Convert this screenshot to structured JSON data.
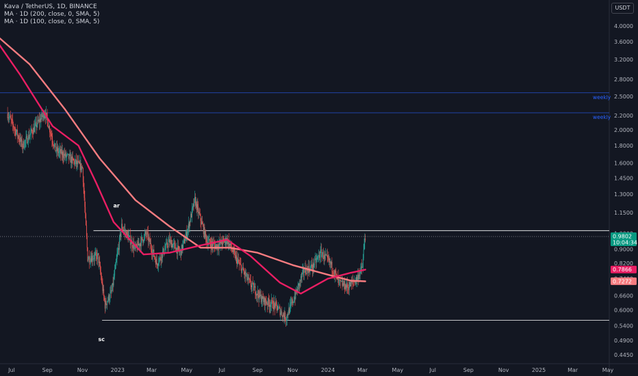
{
  "legend": {
    "symbol_line": "Kava / TetherUS, 1D, BINANCE",
    "ma1_line": "MA · 1D (200, close, 0, SMA, 5)",
    "ma2_line": "MA · 1D (100, close, 0, SMA, 5)"
  },
  "currency_button": "USDT",
  "colors": {
    "background": "#131722",
    "up": "#26a69a",
    "down": "#ef5350",
    "ma200": "#f77c80",
    "ma100": "#e91e63",
    "level_line": "#2962ff",
    "price_badge": "#089981",
    "ma100_badge": "#e91e63",
    "ma200_badge": "#f77c80"
  },
  "chart_data": {
    "type": "candlestick",
    "scale": "log",
    "y_ticks": [
      "4.0000",
      "3.6000",
      "3.2000",
      "2.8000",
      "2.5000",
      "2.2000",
      "2.0000",
      "1.8000",
      "1.6000",
      "1.4500",
      "1.3000",
      "1.1500",
      "1.0000",
      "0.9000",
      "0.8200",
      "0.7400",
      "0.6600",
      "0.6000",
      "0.5400",
      "0.4900",
      "0.4450"
    ],
    "x_ticks": [
      "Jul",
      "Sep",
      "Nov",
      "2023",
      "Mar",
      "May",
      "Jul",
      "Sep",
      "Nov",
      "2024",
      "Mar",
      "May",
      "Jul",
      "Sep",
      "Nov",
      "2025",
      "Mar",
      "May"
    ],
    "horizontal_levels": [
      {
        "price": 2.56,
        "label": "weekly",
        "color": "#2962ff"
      },
      {
        "price": 2.24,
        "label": "weekly",
        "color": "#2962ff"
      },
      {
        "price": 1.02,
        "label": "",
        "color": "#ffffff"
      },
      {
        "price": 0.56,
        "label": "",
        "color": "#ffffff"
      }
    ],
    "annotations": [
      {
        "text": "ar",
        "date": "2022-12-30",
        "price": 1.17
      },
      {
        "text": "sc",
        "date": "2022-12-04",
        "price": 0.515
      }
    ],
    "price_anchors": [
      {
        "date": "2022-06-20",
        "price": 2.3
      },
      {
        "date": "2022-07-20",
        "price": 1.8
      },
      {
        "date": "2022-08-28",
        "price": 2.25
      },
      {
        "date": "2022-09-15",
        "price": 1.75
      },
      {
        "date": "2022-10-10",
        "price": 1.65
      },
      {
        "date": "2022-11-01",
        "price": 1.55
      },
      {
        "date": "2022-11-10",
        "price": 0.85
      },
      {
        "date": "2022-11-28",
        "price": 0.86
      },
      {
        "date": "2022-12-10",
        "price": 0.62
      },
      {
        "date": "2022-12-22",
        "price": 0.68
      },
      {
        "date": "2023-01-08",
        "price": 1.05
      },
      {
        "date": "2023-02-01",
        "price": 0.9
      },
      {
        "date": "2023-02-20",
        "price": 1.0
      },
      {
        "date": "2023-03-10",
        "price": 0.82
      },
      {
        "date": "2023-04-01",
        "price": 0.95
      },
      {
        "date": "2023-04-20",
        "price": 0.88
      },
      {
        "date": "2023-05-01",
        "price": 1.0
      },
      {
        "date": "2023-05-15",
        "price": 1.25
      },
      {
        "date": "2023-06-05",
        "price": 0.95
      },
      {
        "date": "2023-06-20",
        "price": 0.92
      },
      {
        "date": "2023-07-10",
        "price": 0.96
      },
      {
        "date": "2023-07-30",
        "price": 0.82
      },
      {
        "date": "2023-08-18",
        "price": 0.72
      },
      {
        "date": "2023-09-10",
        "price": 0.64
      },
      {
        "date": "2023-10-01",
        "price": 0.62
      },
      {
        "date": "2023-10-20",
        "price": 0.57
      },
      {
        "date": "2023-11-05",
        "price": 0.66
      },
      {
        "date": "2023-11-20",
        "price": 0.78
      },
      {
        "date": "2023-12-05",
        "price": 0.8
      },
      {
        "date": "2023-12-20",
        "price": 0.88
      },
      {
        "date": "2024-01-05",
        "price": 0.82
      },
      {
        "date": "2024-01-20",
        "price": 0.72
      },
      {
        "date": "2024-02-05",
        "price": 0.7
      },
      {
        "date": "2024-02-20",
        "price": 0.74
      },
      {
        "date": "2024-03-01",
        "price": 0.8
      },
      {
        "date": "2024-03-05",
        "price": 0.98
      }
    ],
    "ma200": {
      "name": "MA 200",
      "points": [
        {
          "date": "2022-06-01",
          "price": 3.8
        },
        {
          "date": "2022-08-01",
          "price": 3.1
        },
        {
          "date": "2022-10-01",
          "price": 2.3
        },
        {
          "date": "2022-12-01",
          "price": 1.65
        },
        {
          "date": "2023-02-01",
          "price": 1.25
        },
        {
          "date": "2023-04-01",
          "price": 1.05
        },
        {
          "date": "2023-05-25",
          "price": 0.91
        },
        {
          "date": "2023-07-15",
          "price": 0.91
        },
        {
          "date": "2023-09-01",
          "price": 0.88
        },
        {
          "date": "2023-11-01",
          "price": 0.81
        },
        {
          "date": "2024-01-01",
          "price": 0.76
        },
        {
          "date": "2024-02-10",
          "price": 0.73
        },
        {
          "date": "2024-03-06",
          "price": 0.727
        }
      ]
    },
    "ma100": {
      "name": "MA 100",
      "points": [
        {
          "date": "2022-06-01",
          "price": 3.7
        },
        {
          "date": "2022-07-15",
          "price": 2.9
        },
        {
          "date": "2022-09-10",
          "price": 2.05
        },
        {
          "date": "2022-10-25",
          "price": 1.8
        },
        {
          "date": "2022-11-25",
          "price": 1.4
        },
        {
          "date": "2022-12-25",
          "price": 1.08
        },
        {
          "date": "2023-02-15",
          "price": 0.87
        },
        {
          "date": "2023-04-01",
          "price": 0.88
        },
        {
          "date": "2023-05-20",
          "price": 0.92
        },
        {
          "date": "2023-07-10",
          "price": 0.96
        },
        {
          "date": "2023-08-20",
          "price": 0.86
        },
        {
          "date": "2023-10-10",
          "price": 0.72
        },
        {
          "date": "2023-11-15",
          "price": 0.67
        },
        {
          "date": "2024-01-01",
          "price": 0.74
        },
        {
          "date": "2024-02-10",
          "price": 0.77
        },
        {
          "date": "2024-03-06",
          "price": 0.786
        }
      ]
    },
    "price_badges": [
      {
        "value": "0.9802",
        "sub": "10:04:34",
        "price": 0.9802,
        "color": "#089981"
      },
      {
        "value": "0.7866",
        "price": 0.7866,
        "color": "#e91e63"
      },
      {
        "value": "0.7272",
        "price": 0.7272,
        "color": "#f77c80"
      }
    ],
    "current_price": 0.9802,
    "current_time": "10:04:34"
  }
}
